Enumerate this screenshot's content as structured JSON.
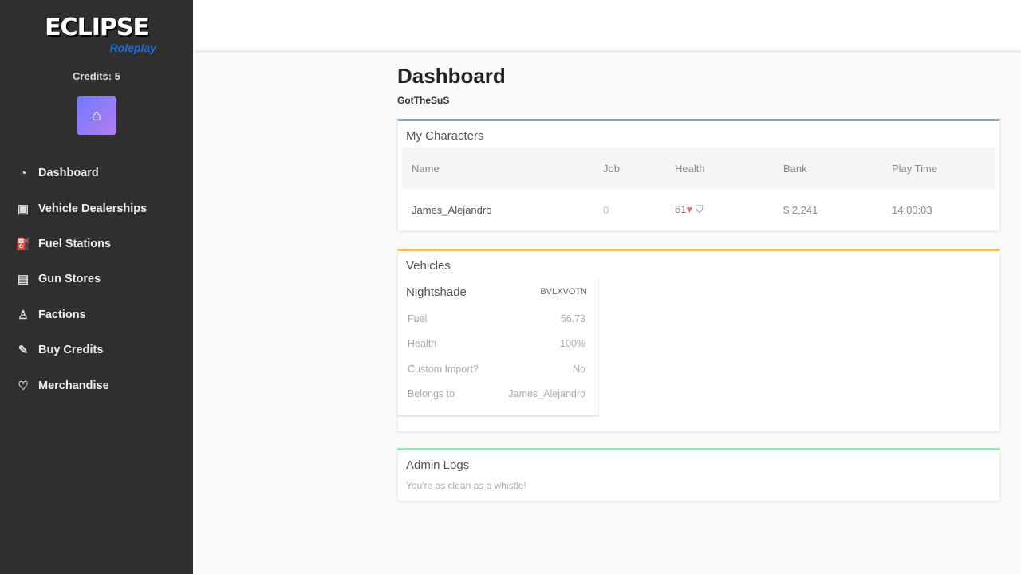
{
  "sidebar": {
    "logo_text": "ECLIPSE",
    "logo_sub": "Roleplay",
    "credits": "Credits: 5",
    "items": [
      {
        "label": "Dashboard",
        "icon": "dashboard-icon"
      },
      {
        "label": "Vehicle Dealerships",
        "icon": "car-icon"
      },
      {
        "label": "Fuel Stations",
        "icon": "fuel-icon"
      },
      {
        "label": "Gun Stores",
        "icon": "store-icon"
      },
      {
        "label": "Factions",
        "icon": "users-icon"
      },
      {
        "label": "Buy Credits",
        "icon": "credits-icon"
      },
      {
        "label": "Merchandise",
        "icon": "shirt-icon"
      }
    ]
  },
  "main": {
    "title": "Dashboard",
    "username": "GotTheSuS",
    "characters": {
      "title": "My Characters",
      "accent": "#8aa3b5",
      "headers": [
        "Name",
        "Job",
        "Health",
        "Bank",
        "Play Time"
      ],
      "rows": [
        {
          "name": "James_Alejandro",
          "job": "0",
          "health": "61",
          "bank": "$ 2,241",
          "playtime": "14:00:03"
        }
      ]
    },
    "vehicles": {
      "title": "Vehicles",
      "accent": "#f0b45a",
      "items": [
        {
          "name": "Nightshade",
          "plate": "BVLXVOTN",
          "fuel_label": "Fuel",
          "fuel": "56.73",
          "health_label": "Health",
          "health": "100%",
          "import_label": "Custom Import?",
          "import": "No",
          "owner_label": "Belongs to",
          "owner": "James_Alejandro"
        }
      ]
    },
    "logs": {
      "title": "Admin Logs",
      "accent": "#9ee0a8",
      "message": "You're as clean as a whistle!"
    }
  }
}
